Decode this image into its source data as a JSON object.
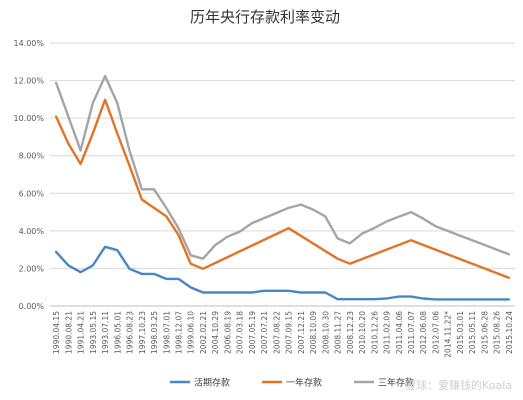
{
  "chart_data": {
    "type": "line",
    "title": "历年央行存款利率变动",
    "xlabel": "",
    "ylabel": "",
    "ylim": [
      0,
      14
    ],
    "yticks": [
      "0.00%",
      "2.00%",
      "4.00%",
      "6.00%",
      "8.00%",
      "10.00%",
      "12.00%",
      "14.00%"
    ],
    "grid": true,
    "legend_position": "bottom",
    "categories": [
      "1990.04.15",
      "1990.08.21",
      "1991.04.21",
      "1993.05.15",
      "1993.07.11",
      "1996.05.01",
      "1996.08.23",
      "1997.10.23",
      "1998.03.25",
      "1998.07.01",
      "1998.12.07",
      "1999.06.10",
      "2002.02.21",
      "2004.10.29",
      "2006.08.19",
      "2007.03.18",
      "2007.05.19",
      "2007.07.21",
      "2007.08.22",
      "2007.09.15",
      "2007.12.21",
      "2008.10.09",
      "2008.10.30",
      "2008.11.27",
      "2008.12.23",
      "2010.10.20",
      "2010.12.26",
      "2011.02.09",
      "2011.04.06",
      "2011.07.07",
      "2012.06.08",
      "2012.07.06",
      "2014.11.22*",
      "2015.03.01",
      "2015.05.11",
      "2015.06.28",
      "2015.08.26",
      "2015.10.24"
    ],
    "series": [
      {
        "name": "活期存款",
        "color": "#4a86c5",
        "values": [
          2.88,
          2.16,
          1.8,
          2.16,
          3.15,
          2.97,
          1.98,
          1.71,
          1.71,
          1.44,
          1.44,
          0.99,
          0.72,
          0.72,
          0.72,
          0.72,
          0.72,
          0.81,
          0.81,
          0.81,
          0.72,
          0.72,
          0.72,
          0.36,
          0.36,
          0.36,
          0.36,
          0.4,
          0.5,
          0.5,
          0.4,
          0.35,
          0.35,
          0.35,
          0.35,
          0.35,
          0.35,
          0.35
        ]
      },
      {
        "name": "一年存款",
        "color": "#e07528",
        "values": [
          10.08,
          8.64,
          7.56,
          9.18,
          10.98,
          9.18,
          7.47,
          5.67,
          5.22,
          4.77,
          3.78,
          2.25,
          1.98,
          null,
          null,
          null,
          null,
          null,
          null,
          4.14,
          null,
          null,
          null,
          2.52,
          2.25,
          null,
          null,
          null,
          null,
          3.5,
          null,
          null,
          null,
          null,
          null,
          null,
          null,
          1.5
        ]
      },
      {
        "name": "三年存款",
        "color": "#a5a5a5",
        "values": [
          11.88,
          10.08,
          8.28,
          10.8,
          12.24,
          10.8,
          8.28,
          6.21,
          6.21,
          5.22,
          4.14,
          2.7,
          2.52,
          3.24,
          3.69,
          3.96,
          4.41,
          4.68,
          4.95,
          5.22,
          5.4,
          5.13,
          4.77,
          3.6,
          3.33,
          3.85,
          4.15,
          4.5,
          4.75,
          5.0,
          4.65,
          4.25,
          4.0,
          3.75,
          3.5,
          3.25,
          3.0,
          2.75
        ]
      }
    ]
  },
  "watermark": "雪球：爱赚钱的Koala"
}
